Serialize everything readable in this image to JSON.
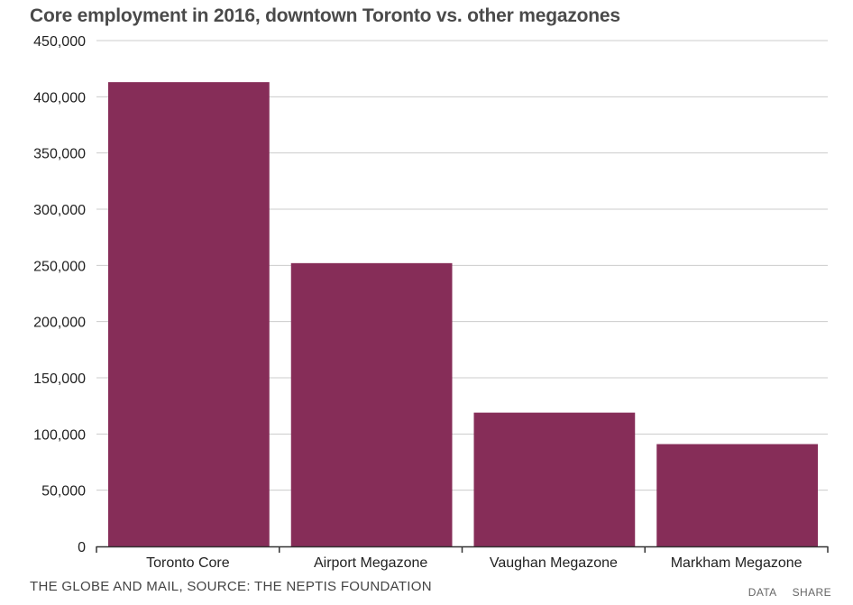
{
  "colors": {
    "bar": "#862d58",
    "grid": "#cccccc",
    "axis": "#333333",
    "title": "#4a4a4a"
  },
  "chart_data": {
    "type": "bar",
    "title": "Core employment in 2016, downtown Toronto vs. other megazones",
    "xlabel": "",
    "ylabel": "",
    "categories": [
      "Toronto Core",
      "Airport Megazone",
      "Vaughan Megazone",
      "Markham Megazone"
    ],
    "values": [
      413000,
      252000,
      119000,
      91000
    ],
    "ylim": [
      0,
      450000
    ],
    "yticks": [
      0,
      50000,
      100000,
      150000,
      200000,
      250000,
      300000,
      350000,
      400000,
      450000
    ],
    "ytick_labels": [
      "0",
      "50,000",
      "100,000",
      "150,000",
      "200,000",
      "250,000",
      "300,000",
      "350,000",
      "400,000",
      "450,000"
    ],
    "grid": true,
    "legend": "none"
  },
  "footer": {
    "source": "THE GLOBE AND MAIL, SOURCE: THE NEPTIS FOUNDATION",
    "data_link": "DATA",
    "share_link": "SHARE"
  }
}
